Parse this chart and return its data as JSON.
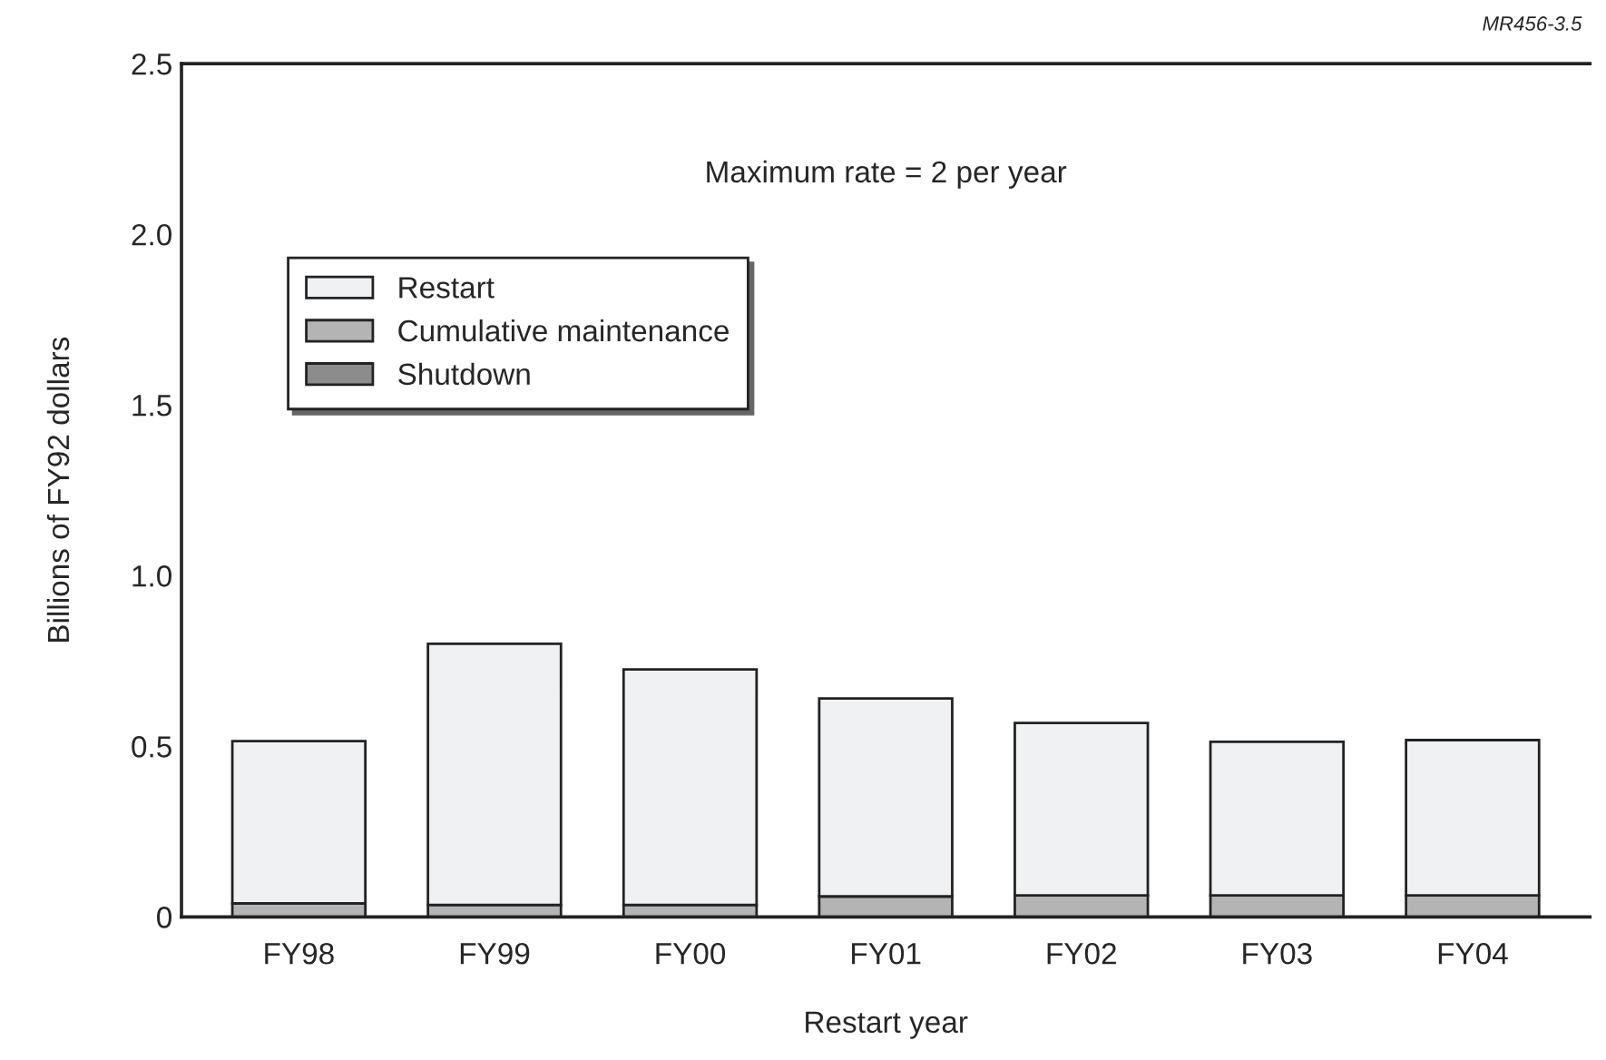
{
  "chart_data": {
    "type": "bar",
    "stacked": true,
    "xlabel": "Restart year",
    "ylabel": "Billions of FY92 dollars",
    "categories": [
      "FY98",
      "FY99",
      "FY00",
      "FY01",
      "FY02",
      "FY03",
      "FY04"
    ],
    "series": [
      {
        "name": "Shutdown",
        "color": "#8c8c8c",
        "values": [
          0,
          0,
          0,
          0,
          0,
          0,
          0
        ]
      },
      {
        "name": "Cumulative maintenance",
        "color": "#b4b4b4",
        "values": [
          0.04,
          0.035,
          0.035,
          0.06,
          0.063,
          0.063,
          0.063
        ]
      },
      {
        "name": "Restart",
        "color": "#f0f1f2",
        "values": [
          0.475,
          0.765,
          0.69,
          0.58,
          0.505,
          0.45,
          0.455
        ]
      }
    ],
    "ylim": [
      0,
      2.5
    ],
    "yticks": [
      0,
      0.5,
      {
        "value": 1,
        "label": "1.0"
      },
      1.5,
      {
        "value": 2,
        "label": "2.0"
      },
      2.5
    ],
    "grid": false,
    "legend": "top left",
    "annotations": [
      "Maximum rate = 2 per year",
      "MR456-3.5"
    ]
  }
}
